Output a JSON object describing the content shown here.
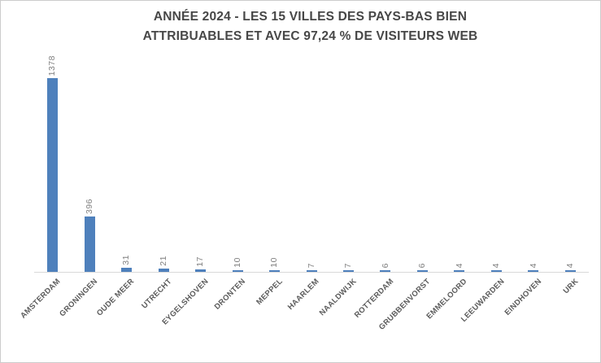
{
  "title": {
    "line1": "ANNÉE 2024 - LES 15 VILLES DES PAYS-BAS BIEN",
    "line2": "ATTRIBUABLES ET AVEC 97,24 % DE VISITEURS WEB"
  },
  "colors": {
    "bar": "#4e80bc",
    "title": "#474747",
    "value_label": "#808080",
    "category_label": "#5a5a5a",
    "axis_line": "#d9d9d9",
    "background": "#ffffff",
    "border": "#cccccc"
  },
  "chart_data": {
    "type": "bar",
    "title": "ANNÉE 2024 - LES 15 VILLES DES PAYS-BAS BIEN ATTRIBUABLES ET AVEC 97,24 % DE VISITEURS WEB",
    "categories": [
      "AMSTERDAM",
      "GRONINGEN",
      "OUDE MEER",
      "UTRECHT",
      "EYGELSHOVEN",
      "DRONTEN",
      "MEPPEL",
      "HAARLEM",
      "NAALDWIJK",
      "ROTTERDAM",
      "GRUBBENVORST",
      "EMMELOORD",
      "LEEUWARDEN",
      "EINDHOVEN",
      "URK"
    ],
    "values": [
      1378,
      396,
      31,
      21,
      17,
      10,
      10,
      7,
      7,
      6,
      6,
      4,
      4,
      4,
      4
    ],
    "xlabel": "",
    "ylabel": "",
    "ylim": [
      0,
      1400
    ],
    "grid": false,
    "y_axis_visible": false,
    "legend_position": "none",
    "data_labels": "above-bars-rotated-90",
    "category_label_rotation_deg": 45,
    "bar_color": "#4e80bc"
  }
}
